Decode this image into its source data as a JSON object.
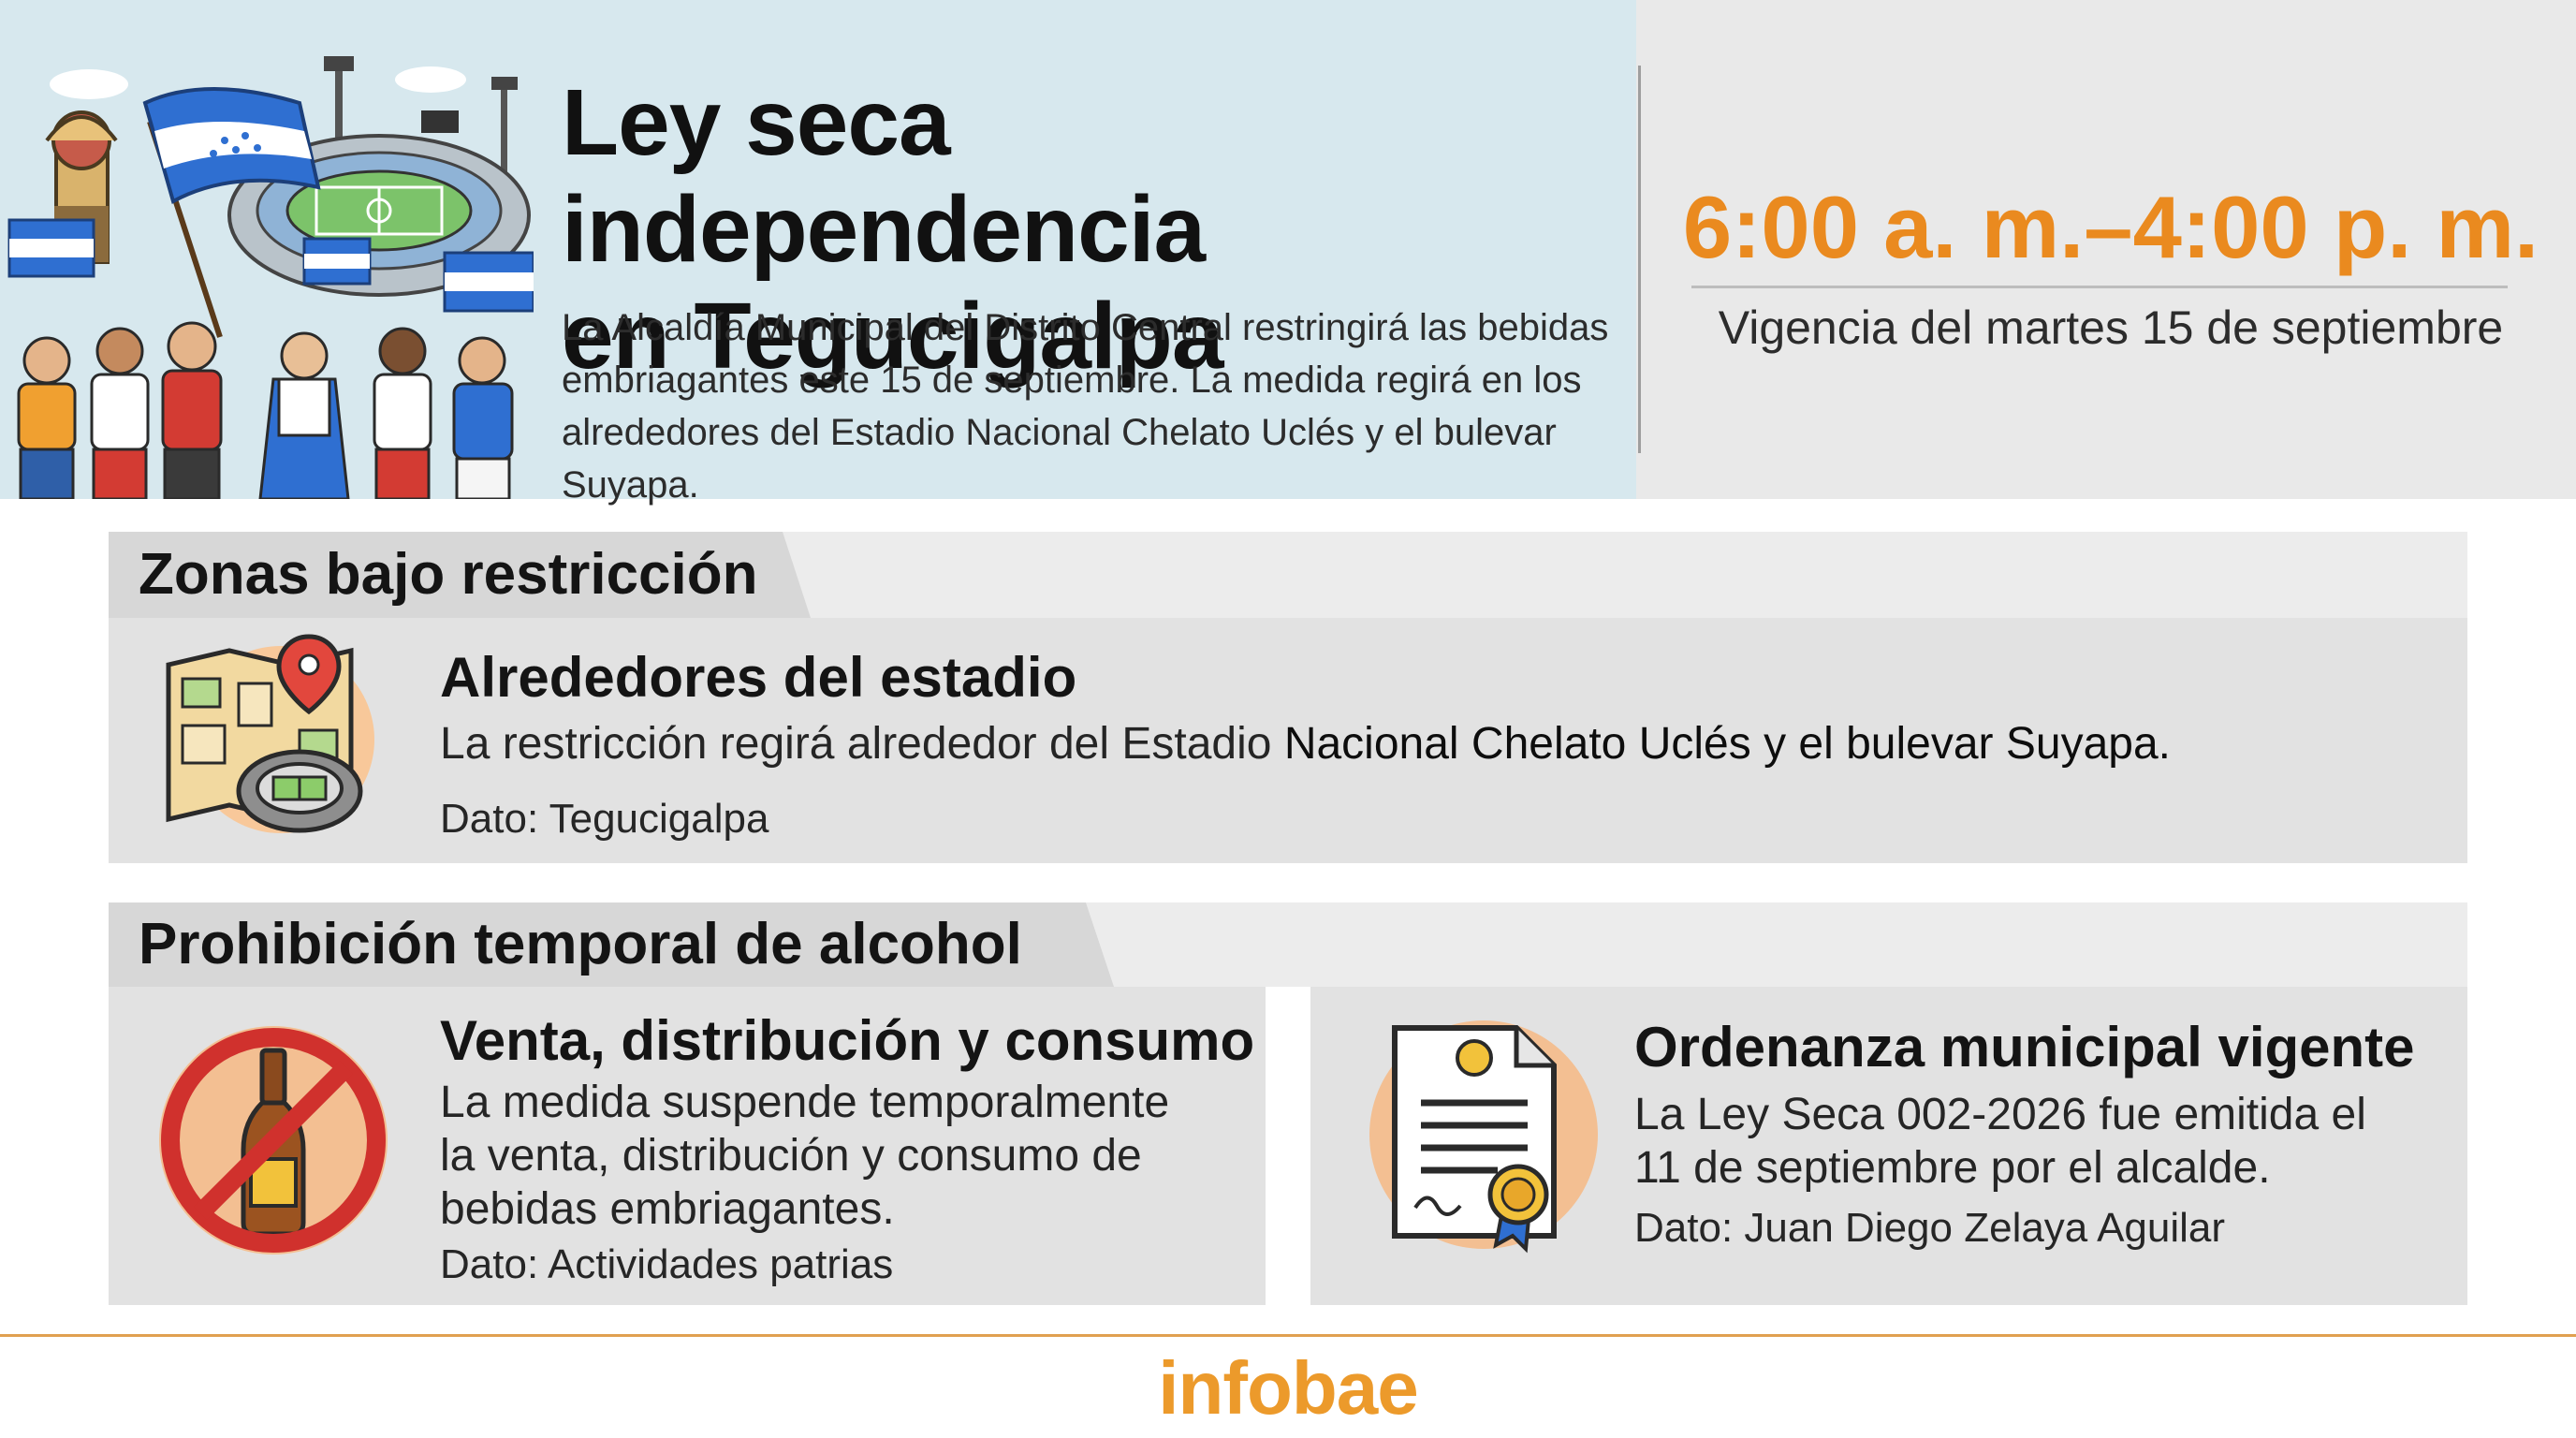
{
  "header": {
    "title_line1": "Ley seca independencia",
    "title_line2": "en Tegucigalpa",
    "intro_line1": "La Alcaldía Municipal del Distrito Central restringirá las bebidas",
    "intro_line2": "embriagantes este 15 de septiembre. La medida regirá en los",
    "intro_line3": "alrededores del Estadio Nacional Chelato Uclés y el bulevar Suyapa.",
    "time_range": "6:00 a. m.–4:00 p. m.",
    "validity": "Vigencia del martes 15 de septiembre"
  },
  "sections": {
    "zones": {
      "label": "Zonas bajo restricción",
      "card": {
        "title": "Alrededores del estadio",
        "text_plain": "La restricción regirá alrededor del Estadio ",
        "text_bold": "Nacional Chelato Uclés y el bulevar Suyapa.",
        "note": "Dato: Tegucigalpa",
        "icon": "map-with-stadium-icon"
      }
    },
    "alcohol": {
      "label": "Prohibición temporal de alcohol",
      "cards": [
        {
          "title": "Venta, distribución y consumo",
          "text_line1": "La medida suspende temporalmente",
          "text_line2": "la venta, distribución y consumo de",
          "text_line3": "bebidas embriagantes.",
          "note": "Dato: Actividades patrias",
          "icon": "no-alcohol-icon"
        },
        {
          "title": "Ordenanza municipal vigente",
          "text_line1": "La Ley Seca 002-2026 fue emitida el",
          "text_line2": "11 de septiembre por el alcalde.",
          "note": "Dato: Juan Diego Zelaya Aguilar",
          "icon": "certificate-icon"
        }
      ]
    }
  },
  "footer": {
    "brand": "infobae"
  },
  "colors": {
    "accent": "#ea8a1f",
    "header_bg": "#d7e8ee",
    "panel_bg": "#e2e2e2",
    "flag_blue": "#2f6fd1",
    "prohibition_red": "#d0312d"
  }
}
